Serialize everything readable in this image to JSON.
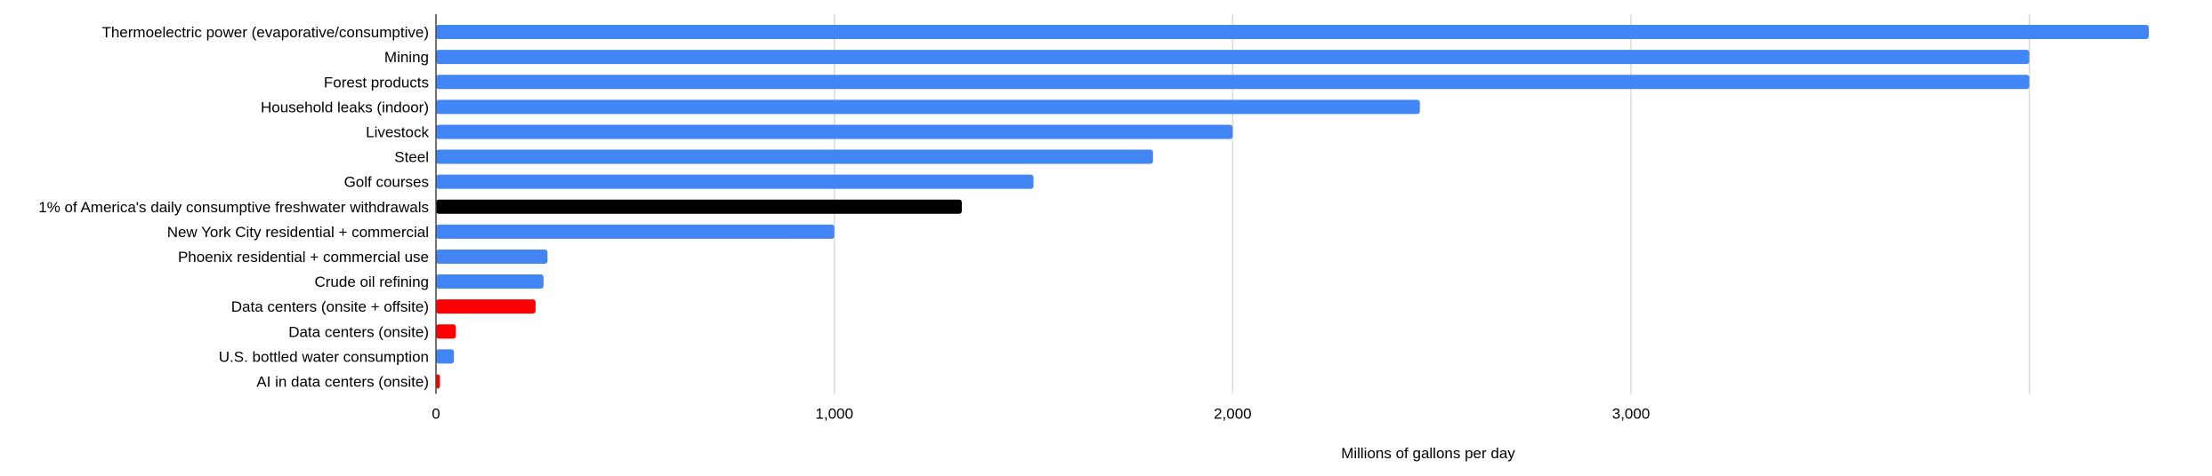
{
  "chart_data": {
    "type": "bar",
    "orientation": "horizontal",
    "title": "",
    "xlabel": "Millions of gallons per day",
    "ylabel": "",
    "xlim": [
      0,
      4300
    ],
    "xticks": [
      0,
      1000,
      2000,
      3000
    ],
    "xtick_labels": [
      "0",
      "1,000",
      "2,000",
      "3,000"
    ],
    "grid": true,
    "legend": "none",
    "categories": [
      "Thermoelectric power (evaporative/consumptive)",
      "Mining",
      "Forest products",
      "Household leaks (indoor)",
      "Livestock",
      "Steel",
      "Golf courses",
      "1% of America's daily consumptive freshwater withdrawals",
      "New York City residential + commercial",
      "Phoenix residential + commercial use",
      "Crude oil refining",
      "Data centers (onsite + offsite)",
      "Data centers (onsite)",
      "U.S. bottled water consumption",
      "AI in data centers (onsite)"
    ],
    "values": [
      4300,
      4000,
      4000,
      2470,
      2000,
      1800,
      1500,
      1320,
      1000,
      280,
      270,
      250,
      50,
      45,
      10
    ],
    "colors": {
      "default": "#4285f4",
      "reference": "#000000",
      "data_center": "#ff0000"
    },
    "bar_colors": [
      "#4285f4",
      "#4285f4",
      "#4285f4",
      "#4285f4",
      "#4285f4",
      "#4285f4",
      "#4285f4",
      "#000000",
      "#4285f4",
      "#4285f4",
      "#4285f4",
      "#ff0000",
      "#ff0000",
      "#4285f4",
      "#ff0000"
    ]
  }
}
